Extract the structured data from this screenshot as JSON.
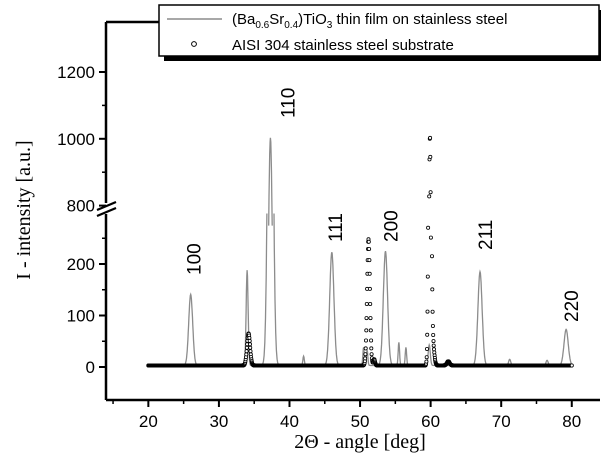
{
  "chart_data": {
    "type": "line",
    "xlabel": "2Θ - angle  [deg]",
    "ylabel": "I - intensity  [a.u.]",
    "xlim": [
      14,
      84
    ],
    "x_ticks": [
      20,
      30,
      40,
      50,
      60,
      70,
      80
    ],
    "y_ticks_lower": [
      0,
      100,
      200
    ],
    "y_ticks_upper": [
      800,
      1000,
      1200
    ],
    "y_axis_break": {
      "from": 300,
      "to": 700
    },
    "grid": false,
    "legend_position": "top",
    "legend": [
      {
        "name_main": "(Ba",
        "sub1": "0.6",
        "mid": "Sr",
        "sub2": "0.4",
        "mid2": ")TiO",
        "sub3": "3",
        "tail": " thin film on stainless steel",
        "style": "gray line"
      },
      {
        "name_main": "AISI 304 stainless steel substrate",
        "style": "open circles"
      }
    ],
    "peak_labels": [
      {
        "text": "100",
        "x": 26.0
      },
      {
        "text": "110",
        "x": 37.3
      },
      {
        "text": "111",
        "x": 46.0
      },
      {
        "text": "200",
        "x": 53.6
      },
      {
        "text": "211",
        "x": 67.0
      },
      {
        "text": "220",
        "x": 79.2
      }
    ],
    "series": [
      {
        "name": "(Ba0.6Sr0.4)TiO3 thin film on stainless steel",
        "color": "#8c8c8c",
        "peaks": [
          {
            "x": 26.0,
            "y": 138,
            "w": 0.28
          },
          {
            "x": 34.0,
            "y": 185,
            "w": 0.14
          },
          {
            "x": 37.3,
            "y": 1000,
            "w": 0.32
          },
          {
            "x": 42.0,
            "y": 18,
            "w": 0.1
          },
          {
            "x": 46.0,
            "y": 220,
            "w": 0.3
          },
          {
            "x": 50.5,
            "y": 35,
            "w": 0.1
          },
          {
            "x": 51.0,
            "y": 30,
            "w": 0.1
          },
          {
            "x": 53.6,
            "y": 222,
            "w": 0.3
          },
          {
            "x": 55.5,
            "y": 45,
            "w": 0.1
          },
          {
            "x": 56.5,
            "y": 35,
            "w": 0.1
          },
          {
            "x": 59.8,
            "y": 40,
            "w": 0.15
          },
          {
            "x": 67.0,
            "y": 182,
            "w": 0.3
          },
          {
            "x": 71.2,
            "y": 12,
            "w": 0.15
          },
          {
            "x": 76.5,
            "y": 10,
            "w": 0.15
          },
          {
            "x": 79.2,
            "y": 70,
            "w": 0.3
          }
        ]
      },
      {
        "name": "AISI 304 stainless steel substrate",
        "color": "#000000",
        "peaks": [
          {
            "x": 34.2,
            "y": 62,
            "w": 0.22
          },
          {
            "x": 51.2,
            "y": 245,
            "w": 0.2
          },
          {
            "x": 52.0,
            "y": 12,
            "w": 0.12
          },
          {
            "x": 59.9,
            "y": 1000,
            "w": 0.16
          },
          {
            "x": 60.3,
            "y": 45,
            "w": 0.2
          },
          {
            "x": 62.5,
            "y": 8,
            "w": 0.2
          }
        ]
      }
    ]
  }
}
